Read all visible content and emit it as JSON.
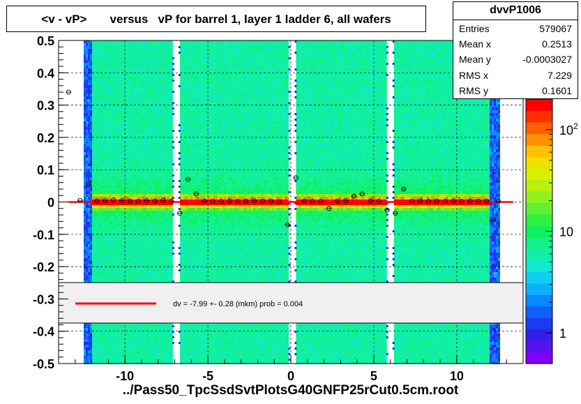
{
  "title": "<v - vP>       versus   vP for barrel 1, layer 1 ladder 6, all wafers",
  "stats": {
    "name": "dvvP1006",
    "rows": [
      {
        "label": "Entries",
        "value": "579067"
      },
      {
        "label": "Mean x",
        "value": "0.2513"
      },
      {
        "label": "Mean y",
        "value": "-0.0003027"
      },
      {
        "label": "RMS x",
        "value": "7.229"
      },
      {
        "label": "RMS y",
        "value": "0.1601"
      }
    ]
  },
  "footer": "../Pass50_TpcSsdSvtPlotsG40GNFP25rCut0.5cm.root",
  "legend_text": "dv =   -7.99 +-  0.28 (mkm) prob = 0.004",
  "colors": {
    "fit_line": "#ff0000",
    "legend_bg": "#f0f0f0",
    "band_core": "#ff0000",
    "band_mid": "#ffcc00",
    "background_density": "#00ddaa"
  },
  "chart_data": {
    "type": "heatmap",
    "xlim": [
      -14,
      14
    ],
    "ylim": [
      -0.5,
      0.5
    ],
    "xticks": [
      -10,
      -5,
      0,
      5,
      10
    ],
    "xtick_labels": [
      "-10",
      "-5",
      "0",
      "5",
      "10"
    ],
    "yticks": [
      -0.5,
      -0.4,
      -0.3,
      -0.2,
      -0.1,
      0,
      0.1,
      0.2,
      0.3,
      0.4,
      0.5
    ],
    "ytick_labels": [
      "-0.5",
      "-0.4",
      "-0.3",
      "-0.2",
      "-0.1",
      "0",
      "0.1",
      "0.2",
      "0.3",
      "0.4",
      "0.5"
    ],
    "grid": true,
    "colorbar": {
      "scale": "log",
      "min": 0.5,
      "max": 200,
      "labels": [
        {
          "text": "1",
          "value": 1
        },
        {
          "text": "10",
          "value": 10
        },
        {
          "text": "10",
          "sup": "2",
          "value": 100
        }
      ]
    },
    "data_x_range": [
      -12.5,
      12.5
    ],
    "gaps_x": [
      -6.9,
      0.1,
      6.0
    ],
    "fit": {
      "slope": 0,
      "intercept": -8e-06,
      "x_range": [
        -13.4,
        13.4
      ]
    },
    "profile_points": [
      {
        "x": -13.4,
        "y": 0.34
      },
      {
        "x": -12.7,
        "y": 0.005
      },
      {
        "x": -12.2,
        "y": 0.055
      },
      {
        "x": -11.7,
        "y": 0.003
      },
      {
        "x": -11.2,
        "y": 0.004
      },
      {
        "x": -10.7,
        "y": 0.006
      },
      {
        "x": -10.2,
        "y": 0.004
      },
      {
        "x": -9.7,
        "y": 0.003
      },
      {
        "x": -9.2,
        "y": 0.002
      },
      {
        "x": -8.7,
        "y": 0.004
      },
      {
        "x": -8.2,
        "y": 0.003
      },
      {
        "x": -7.7,
        "y": 0.005
      },
      {
        "x": -7.2,
        "y": 0.002
      },
      {
        "x": -6.7,
        "y": -0.035
      },
      {
        "x": -6.2,
        "y": 0.07
      },
      {
        "x": -5.7,
        "y": 0.025
      },
      {
        "x": -5.2,
        "y": 0.003
      },
      {
        "x": -4.7,
        "y": 0.002
      },
      {
        "x": -4.2,
        "y": 0.002
      },
      {
        "x": -3.7,
        "y": 0.003
      },
      {
        "x": -3.2,
        "y": 0.002
      },
      {
        "x": -2.7,
        "y": 0.003
      },
      {
        "x": -2.2,
        "y": 0.004
      },
      {
        "x": -1.7,
        "y": 0.002
      },
      {
        "x": -1.2,
        "y": 0.003
      },
      {
        "x": -0.7,
        "y": 0.001
      },
      {
        "x": -0.2,
        "y": -0.07
      },
      {
        "x": 0.3,
        "y": 0.075
      },
      {
        "x": 0.8,
        "y": 0.003
      },
      {
        "x": 1.3,
        "y": 0.002
      },
      {
        "x": 1.8,
        "y": 0.002
      },
      {
        "x": 2.3,
        "y": -0.02
      },
      {
        "x": 2.8,
        "y": 0.003
      },
      {
        "x": 3.3,
        "y": 0.004
      },
      {
        "x": 3.8,
        "y": 0.018
      },
      {
        "x": 4.3,
        "y": 0.025
      },
      {
        "x": 4.8,
        "y": 0.003
      },
      {
        "x": 5.3,
        "y": 0.002
      },
      {
        "x": 5.8,
        "y": -0.025
      },
      {
        "x": 6.3,
        "y": -0.035
      },
      {
        "x": 6.8,
        "y": 0.04
      },
      {
        "x": 7.3,
        "y": 0.002
      },
      {
        "x": 7.8,
        "y": 0.003
      },
      {
        "x": 8.3,
        "y": 0.002
      },
      {
        "x": 8.8,
        "y": 0.003
      },
      {
        "x": 9.3,
        "y": 0.002
      },
      {
        "x": 9.8,
        "y": 0.003
      },
      {
        "x": 10.3,
        "y": 0.002
      },
      {
        "x": 10.8,
        "y": 0.003
      },
      {
        "x": 11.3,
        "y": 0.002
      },
      {
        "x": 11.8,
        "y": 0.003
      },
      {
        "x": 12.2,
        "y": -0.055
      },
      {
        "x": 12.5,
        "y": 0.003
      }
    ]
  }
}
